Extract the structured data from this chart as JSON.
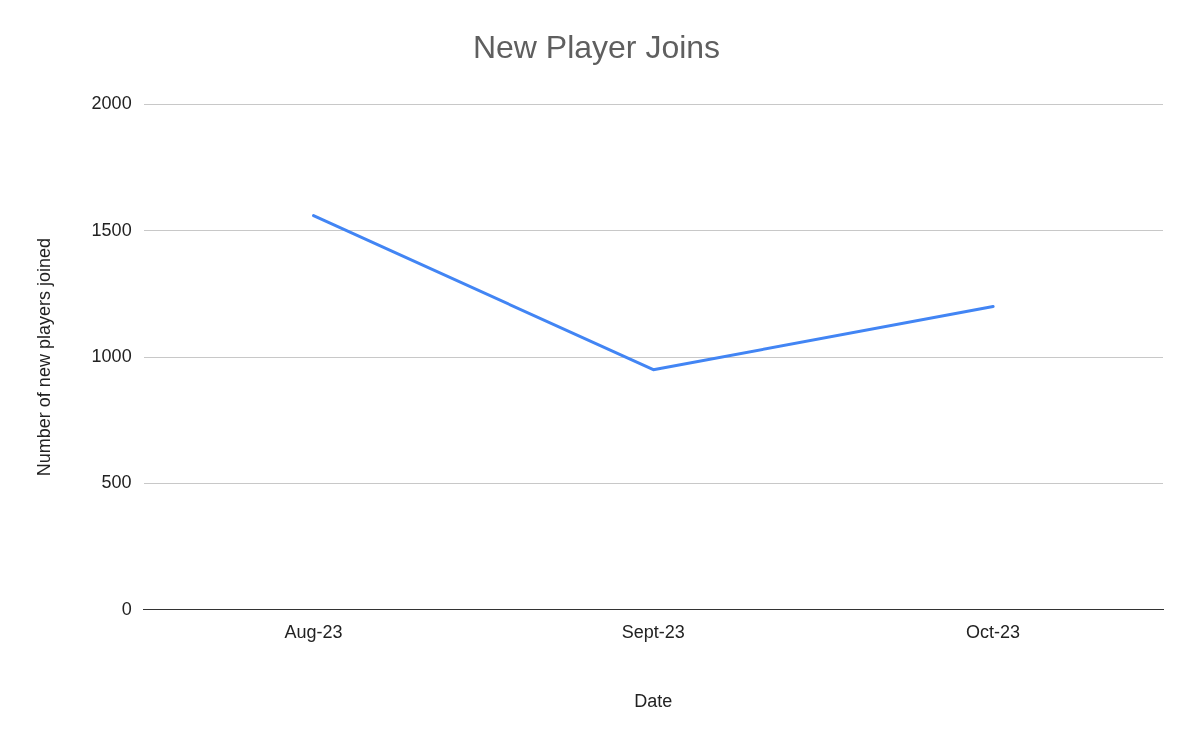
{
  "chart_data": {
    "type": "line",
    "title": "New Player Joins",
    "xlabel": "Date",
    "ylabel": "Number of new players joined",
    "categories": [
      "Aug-23",
      "Sept-23",
      "Oct-23"
    ],
    "series": [
      {
        "color": "#4285f4",
        "values": [
          1560,
          950,
          1200
        ]
      }
    ],
    "ylim": [
      0,
      2000
    ],
    "yticks": [
      0,
      500,
      1000,
      1500,
      2000
    ],
    "grid": "y",
    "legend": false,
    "marker": "none",
    "line_style": "solid"
  }
}
